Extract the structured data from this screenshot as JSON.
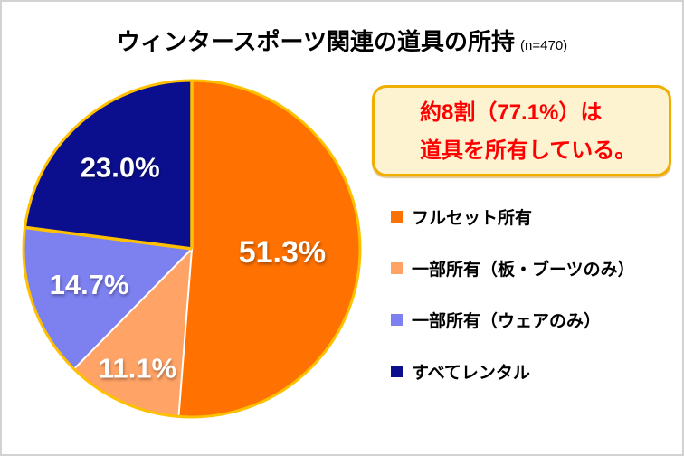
{
  "title": {
    "text": "ウィンタースポーツ関連の道具の所持",
    "suffix": "(n=470)"
  },
  "callout": {
    "line1": "約8割（77.1%）は",
    "line2": "道具を所有している。",
    "text_color": "#ff0000",
    "bg_color": "#fdf3d1",
    "border_color": "#f0ae00"
  },
  "chart_data": {
    "type": "pie",
    "title": "ウィンタースポーツ関連の道具の所持",
    "sample_label": "(n=470)",
    "categories": [
      "フルセット所有",
      "一部所有（板・ブーツのみ）",
      "一部所有（ウェアのみ）",
      "すべてレンタル"
    ],
    "values": [
      51.3,
      11.1,
      14.7,
      23.0
    ],
    "labels": [
      "51.3%",
      "11.1%",
      "14.7%",
      "23.0%"
    ],
    "colors": [
      "#ff7100",
      "#ffa366",
      "#7d81f0",
      "#0b0f8e"
    ],
    "rim_color": "#ffc000",
    "separator_colors": [
      "#ffc000",
      "#ffffff",
      "#ffffff",
      "#ffc000"
    ],
    "start_angle_deg": 0,
    "direction": "clockwise",
    "legend_position": "right",
    "label_text_color": "#ffffff"
  }
}
